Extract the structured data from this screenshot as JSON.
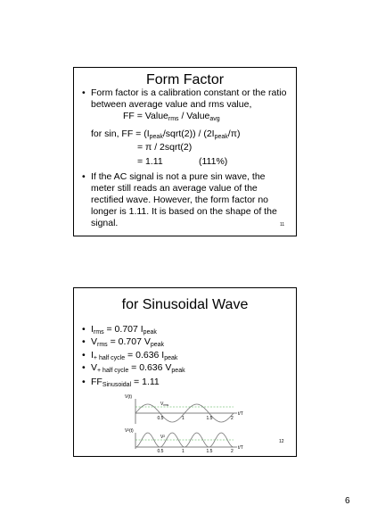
{
  "page_number": "6",
  "slides": [
    {
      "title": "Form Factor",
      "number": "11",
      "items": [
        {
          "bullet": true,
          "segments": [
            {
              "text": "Form factor is a calibration constant or the ratio between average value and rms value,"
            }
          ]
        },
        {
          "bullet": false,
          "segments": [
            {
              "text": "FF = Value"
            },
            {
              "sub": "rms"
            },
            {
              "text": " / Value"
            },
            {
              "sub": "avg"
            }
          ]
        },
        {
          "bullet": false,
          "segments": [
            {
              "text": "for sin, FF = (I"
            },
            {
              "sub": "peak"
            },
            {
              "text": "/sqrt(2)) / (2I"
            },
            {
              "sub": "peak"
            },
            {
              "text": "/π)"
            }
          ]
        },
        {
          "bullet": false,
          "segments": [
            {
              "text": "= π / 2sqrt(2)"
            }
          ]
        },
        {
          "bullet": false,
          "segments": [
            {
              "text": "= 1.11"
            }
          ]
        },
        {
          "bullet": false,
          "segments": [
            {
              "text": "(111%)"
            }
          ]
        },
        {
          "bullet": true,
          "segments": [
            {
              "text": "If the AC signal is not a pure sin wave, the meter still reads an average value of the rectified wave. However, the form factor no longer is 1.11. It is based on the shape of the signal."
            }
          ]
        }
      ]
    },
    {
      "title": "for Sinusoidal Wave",
      "number": "12",
      "items": [
        {
          "bullet": true,
          "segments": [
            {
              "text": "I"
            },
            {
              "sub": "rms"
            },
            {
              "text": " = 0.707 I"
            },
            {
              "sub": "peak"
            }
          ]
        },
        {
          "bullet": true,
          "segments": [
            {
              "text": "V"
            },
            {
              "sub": "rms"
            },
            {
              "text": " = 0.707 V"
            },
            {
              "sub": "peak"
            }
          ]
        },
        {
          "bullet": true,
          "segments": [
            {
              "text": "I"
            },
            {
              "sub": "+ half cycle"
            },
            {
              "text": " = 0.636 I"
            },
            {
              "sub": "peak"
            }
          ]
        },
        {
          "bullet": true,
          "segments": [
            {
              "text": "V"
            },
            {
              "sub": "+ half cycle"
            },
            {
              "text": " = 0.636 V"
            },
            {
              "sub": "peak"
            }
          ]
        },
        {
          "bullet": true,
          "segments": [
            {
              "text": "FF"
            },
            {
              "sub": "Sinusoidal"
            },
            {
              "text": " = 1.11"
            }
          ]
        }
      ],
      "figure": {
        "top": {
          "ylabel": "V(t)",
          "line_label": "V",
          "line_label_sub": "rms",
          "xlabel": "t/T",
          "xticks": [
            "0.5",
            "1",
            "1.5",
            "2"
          ]
        },
        "bottom": {
          "ylabel": "V²(t)",
          "line_label": "V²",
          "xlabel": "t/T",
          "xticks": [
            "0.5",
            "1",
            "1.5",
            "2"
          ]
        }
      }
    }
  ]
}
